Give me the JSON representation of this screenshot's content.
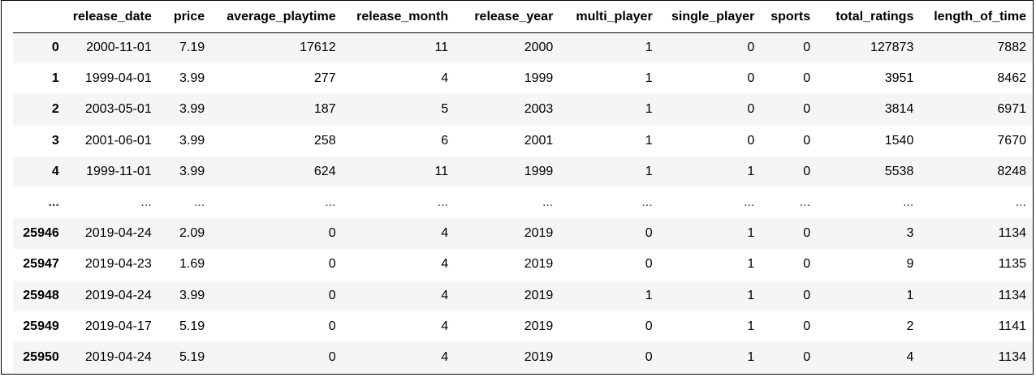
{
  "table": {
    "columns": [
      "",
      "release_date",
      "price",
      "average_playtime",
      "release_month",
      "release_year",
      "multi_player",
      "single_player",
      "sports",
      "total_ratings",
      "length_of_time"
    ],
    "rows": [
      [
        "0",
        "2000-11-01",
        "7.19",
        "17612",
        "11",
        "2000",
        "1",
        "0",
        "0",
        "127873",
        "7882"
      ],
      [
        "1",
        "1999-04-01",
        "3.99",
        "277",
        "4",
        "1999",
        "1",
        "0",
        "0",
        "3951",
        "8462"
      ],
      [
        "2",
        "2003-05-01",
        "3.99",
        "187",
        "5",
        "2003",
        "1",
        "0",
        "0",
        "3814",
        "6971"
      ],
      [
        "3",
        "2001-06-01",
        "3.99",
        "258",
        "6",
        "2001",
        "1",
        "0",
        "0",
        "1540",
        "7670"
      ],
      [
        "4",
        "1999-11-01",
        "3.99",
        "624",
        "11",
        "1999",
        "1",
        "1",
        "0",
        "5538",
        "8248"
      ],
      [
        "...",
        "...",
        "...",
        "...",
        "...",
        "...",
        "...",
        "...",
        "...",
        "...",
        "..."
      ],
      [
        "25946",
        "2019-04-24",
        "2.09",
        "0",
        "4",
        "2019",
        "0",
        "1",
        "0",
        "3",
        "1134"
      ],
      [
        "25947",
        "2019-04-23",
        "1.69",
        "0",
        "4",
        "2019",
        "0",
        "1",
        "0",
        "9",
        "1135"
      ],
      [
        "25948",
        "2019-04-24",
        "3.99",
        "0",
        "4",
        "2019",
        "1",
        "1",
        "0",
        "1",
        "1134"
      ],
      [
        "25949",
        "2019-04-17",
        "5.19",
        "0",
        "4",
        "2019",
        "0",
        "1",
        "0",
        "2",
        "1141"
      ],
      [
        "25950",
        "2019-04-24",
        "5.19",
        "0",
        "4",
        "2019",
        "0",
        "1",
        "0",
        "4",
        "1134"
      ]
    ]
  },
  "colors": {
    "stripe": "#f5f5f5",
    "background": "#ffffff",
    "border": "#000000"
  }
}
